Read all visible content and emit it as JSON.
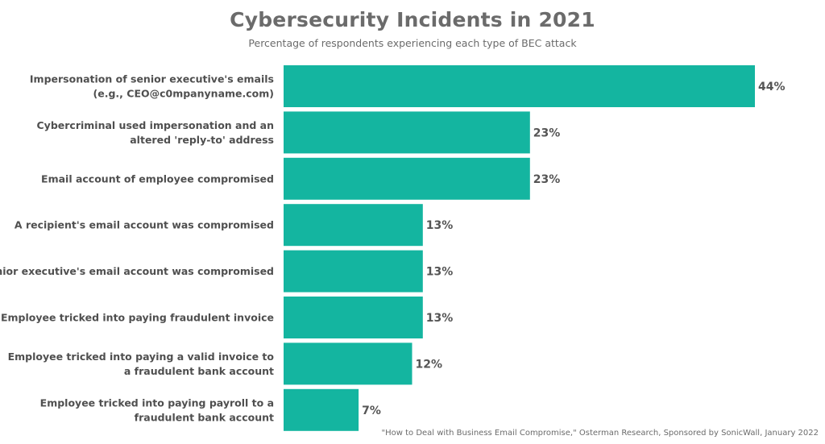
{
  "chart_data": {
    "type": "bar",
    "orientation": "horizontal",
    "title": "Cybersecurity Incidents in 2021",
    "subtitle": "Percentage of respondents experiencing each type of BEC attack",
    "categories": [
      [
        "Impersonation of senior executive's emails",
        "(e.g., CEO@c0mpanyname.com)"
      ],
      [
        "Cybercriminal used impersonation and an",
        "altered 'reply-to' address"
      ],
      [
        "Email account of employee compromised"
      ],
      [
        "A recipient's email account was compromised"
      ],
      [
        "Senior executive's email account was compromised"
      ],
      [
        "Employee tricked into paying fraudulent invoice"
      ],
      [
        "Employee tricked into paying a valid invoice to",
        "a fraudulent bank account"
      ],
      [
        "Employee tricked into paying payroll to a",
        "fraudulent bank account"
      ]
    ],
    "values": [
      44,
      23,
      23,
      13,
      13,
      13,
      12,
      7
    ],
    "value_labels": [
      "44%",
      "23%",
      "23%",
      "13%",
      "13%",
      "13%",
      "12%",
      "7%"
    ],
    "unit": "%",
    "xlim": [
      0,
      44
    ],
    "grid": false,
    "legend": "none",
    "bar_color": "#14b5a0"
  },
  "source_note": "\"How to Deal with Business Email Compromise,\" Osterman Research, Sponsored by SonicWall, January 2022"
}
